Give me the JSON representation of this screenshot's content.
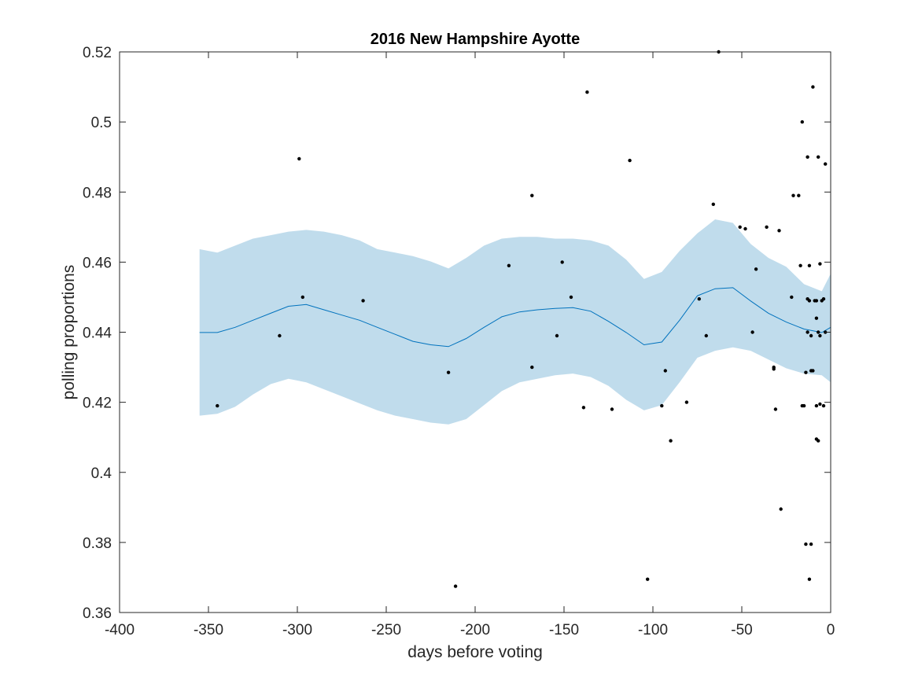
{
  "chart_data": {
    "type": "scatter",
    "title": "2016 New Hampshire Ayotte",
    "xlabel": "days before voting",
    "ylabel": "polling proportions",
    "xlim": [
      -400,
      0
    ],
    "ylim": [
      0.36,
      0.52
    ],
    "xticks": [
      -400,
      -350,
      -300,
      -250,
      -200,
      -150,
      -100,
      -50,
      0
    ],
    "xtick_labels": [
      "-400",
      "-350",
      "-300",
      "-250",
      "-200",
      "-150",
      "-100",
      "-50",
      "0"
    ],
    "yticks": [
      0.36,
      0.38,
      0.4,
      0.42,
      0.44,
      0.46,
      0.48,
      0.5,
      0.52
    ],
    "ytick_labels": [
      "0.36",
      "0.38",
      "0.4",
      "0.42",
      "0.44",
      "0.46",
      "0.48",
      "0.5",
      "0.52"
    ],
    "grid": false,
    "colors": {
      "points": "#000000",
      "mean_line": "#0072bd",
      "band": "#c0dcec",
      "axes": "#262626"
    },
    "band": {
      "x": [
        -355,
        -345,
        -335,
        -325,
        -315,
        -305,
        -295,
        -285,
        -275,
        -265,
        -255,
        -245,
        -235,
        -225,
        -215,
        -205,
        -195,
        -185,
        -175,
        -165,
        -155,
        -145,
        -135,
        -125,
        -115,
        -105,
        -95,
        -85,
        -75,
        -65,
        -55,
        -45,
        -35,
        -25,
        -15,
        -5,
        0
      ],
      "upper": [
        0.4637,
        0.4627,
        0.4647,
        0.4667,
        0.4677,
        0.4687,
        0.4692,
        0.4687,
        0.4677,
        0.4662,
        0.4637,
        0.4627,
        0.4617,
        0.4602,
        0.4582,
        0.4612,
        0.4647,
        0.4667,
        0.4672,
        0.4672,
        0.4667,
        0.4667,
        0.4662,
        0.4647,
        0.4607,
        0.4552,
        0.4572,
        0.4632,
        0.4682,
        0.4722,
        0.4712,
        0.4652,
        0.4612,
        0.4587,
        0.4537,
        0.4517,
        0.4567
      ],
      "lower": [
        0.4162,
        0.4167,
        0.4187,
        0.4222,
        0.4252,
        0.4267,
        0.4257,
        0.4237,
        0.4217,
        0.4197,
        0.4177,
        0.4162,
        0.4152,
        0.4142,
        0.4137,
        0.4152,
        0.4192,
        0.4232,
        0.4257,
        0.4267,
        0.4277,
        0.4282,
        0.4272,
        0.4247,
        0.4207,
        0.4177,
        0.4192,
        0.4257,
        0.4327,
        0.4347,
        0.4357,
        0.4347,
        0.4322,
        0.4297,
        0.4282,
        0.4277,
        0.4257
      ]
    },
    "series": [
      {
        "type": "line",
        "x": [
          -355,
          -345,
          -335,
          -325,
          -315,
          -305,
          -295,
          -285,
          -275,
          -265,
          -255,
          -245,
          -235,
          -225,
          -215,
          -205,
          -195,
          -185,
          -175,
          -165,
          -155,
          -145,
          -135,
          -125,
          -115,
          -105,
          -95,
          -85,
          -75,
          -65,
          -55,
          -45,
          -35,
          -25,
          -15,
          -5,
          0
        ],
        "y": [
          0.4399,
          0.4399,
          0.4414,
          0.4434,
          0.4454,
          0.4474,
          0.4479,
          0.4464,
          0.4449,
          0.4434,
          0.4414,
          0.4394,
          0.4374,
          0.4364,
          0.4359,
          0.4382,
          0.4414,
          0.4444,
          0.4458,
          0.4464,
          0.4468,
          0.447,
          0.446,
          0.4431,
          0.4399,
          0.4364,
          0.4372,
          0.4434,
          0.4504,
          0.4524,
          0.4527,
          0.4489,
          0.4454,
          0.4429,
          0.4409,
          0.4399,
          0.4414
        ]
      },
      {
        "type": "scatter",
        "points": [
          [
            -345,
            0.419
          ],
          [
            -310,
            0.439
          ],
          [
            -299,
            0.4895
          ],
          [
            -297,
            0.45
          ],
          [
            -263,
            0.449
          ],
          [
            -215,
            0.4285
          ],
          [
            -211,
            0.3675
          ],
          [
            -181,
            0.459
          ],
          [
            -168,
            0.479
          ],
          [
            -168,
            0.43
          ],
          [
            -154,
            0.439
          ],
          [
            -151,
            0.46
          ],
          [
            -146,
            0.45
          ],
          [
            -139,
            0.4185
          ],
          [
            -137,
            0.5085
          ],
          [
            -123,
            0.418
          ],
          [
            -113,
            0.489
          ],
          [
            -103,
            0.3695
          ],
          [
            -95,
            0.419
          ],
          [
            -93,
            0.429
          ],
          [
            -90,
            0.409
          ],
          [
            -81,
            0.42
          ],
          [
            -74,
            0.4495
          ],
          [
            -70,
            0.439
          ],
          [
            -66,
            0.4765
          ],
          [
            -63,
            0.52
          ],
          [
            -51,
            0.47
          ],
          [
            -48,
            0.4695
          ],
          [
            -44,
            0.44
          ],
          [
            -42,
            0.458
          ],
          [
            -36,
            0.47
          ],
          [
            -32,
            0.43
          ],
          [
            -32,
            0.4295
          ],
          [
            -31,
            0.418
          ],
          [
            -29,
            0.469
          ],
          [
            -28,
            0.3895
          ],
          [
            -22,
            0.45
          ],
          [
            -21,
            0.479
          ],
          [
            -18,
            0.479
          ],
          [
            -17,
            0.459
          ],
          [
            -16,
            0.419
          ],
          [
            -16,
            0.5
          ],
          [
            -15,
            0.419
          ],
          [
            -14,
            0.4285
          ],
          [
            -14,
            0.3795
          ],
          [
            -13,
            0.49
          ],
          [
            -13,
            0.4495
          ],
          [
            -13,
            0.44
          ],
          [
            -12,
            0.449
          ],
          [
            -12,
            0.459
          ],
          [
            -12,
            0.3695
          ],
          [
            -11,
            0.439
          ],
          [
            -11,
            0.429
          ],
          [
            -11,
            0.3795
          ],
          [
            -10,
            0.51
          ],
          [
            -10,
            0.429
          ],
          [
            -9,
            0.449
          ],
          [
            -8,
            0.4095
          ],
          [
            -8,
            0.444
          ],
          [
            -8,
            0.449
          ],
          [
            -8,
            0.419
          ],
          [
            -7,
            0.49
          ],
          [
            -7,
            0.409
          ],
          [
            -7,
            0.44
          ],
          [
            -6,
            0.4595
          ],
          [
            -6,
            0.439
          ],
          [
            -6,
            0.4195
          ],
          [
            -5,
            0.449
          ],
          [
            -4,
            0.419
          ],
          [
            -4,
            0.4495
          ],
          [
            -3,
            0.488
          ],
          [
            -3,
            0.44
          ]
        ]
      }
    ]
  }
}
